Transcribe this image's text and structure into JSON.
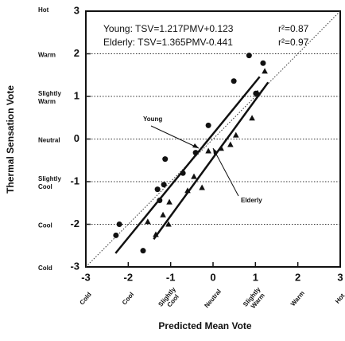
{
  "chart_data": {
    "type": "scatter",
    "xlabel": "Predicted Mean Vote",
    "ylabel": "Thermal Sensation Vote",
    "xlim": [
      -3,
      3
    ],
    "ylim": [
      -3,
      3
    ],
    "xticks": [
      -3,
      -2,
      -1,
      0,
      1,
      2,
      3
    ],
    "yticks": [
      -3,
      -2,
      -1,
      0,
      1,
      2,
      3
    ],
    "x_category_labels": [
      {
        "value": -3,
        "label": "Cold"
      },
      {
        "value": -2,
        "label": "Cool"
      },
      {
        "value": -1,
        "label": "Slightly Cool"
      },
      {
        "value": 0,
        "label": "Neutral"
      },
      {
        "value": 1,
        "label": "Slightly Warm"
      },
      {
        "value": 2,
        "label": "Warm"
      },
      {
        "value": 3,
        "label": "Hot"
      }
    ],
    "y_category_labels": [
      {
        "value": 3,
        "label": "Hot"
      },
      {
        "value": 2,
        "label": "Warm"
      },
      {
        "value": 1,
        "label": "Slightly Warm"
      },
      {
        "value": 0,
        "label": "Neutral"
      },
      {
        "value": -1,
        "label": "Slightly Cool"
      },
      {
        "value": -2,
        "label": "Cool"
      },
      {
        "value": -3,
        "label": "Cold"
      }
    ],
    "grid": true,
    "identity_line": true,
    "annotations": [
      "Young:  TSV=1.217PMV+0.123",
      "r²=0.87",
      "Elderly: TSV=1.365PMV-0.441",
      "r²=0.97",
      "Young",
      "Elderly"
    ],
    "series": [
      {
        "name": "Young",
        "marker": "circle",
        "color": "#111111",
        "x": [
          0.85,
          1.18,
          0.49,
          1.01,
          -0.11,
          -0.41,
          -1.13,
          -0.71,
          -1.16,
          -1.31,
          -1.26,
          -2.21,
          -2.29,
          -1.65
        ],
        "y": [
          1.96,
          1.78,
          1.36,
          1.07,
          0.32,
          -0.32,
          -0.47,
          -0.8,
          -1.07,
          -1.18,
          -1.44,
          -2.0,
          -2.26,
          -2.62
        ],
        "line_x": [
          -2.3,
          1.1
        ],
        "line_y": [
          -2.68,
          1.46
        ]
      },
      {
        "name": "Elderly",
        "marker": "triangle",
        "color": "#111111",
        "x": [
          1.22,
          1.05,
          0.92,
          0.54,
          0.41,
          0.19,
          -0.11,
          -0.6,
          -0.26,
          -0.45,
          -1.03,
          -1.18,
          -1.05,
          -1.35,
          -1.54
        ],
        "y": [
          1.59,
          1.08,
          0.49,
          0.09,
          -0.13,
          -0.22,
          -0.28,
          -1.21,
          -1.14,
          -0.88,
          -1.48,
          -1.78,
          -2.0,
          -2.24,
          -1.94
        ],
        "line_x": [
          -1.4,
          1.3
        ],
        "line_y": [
          -2.35,
          1.33
        ]
      }
    ]
  }
}
